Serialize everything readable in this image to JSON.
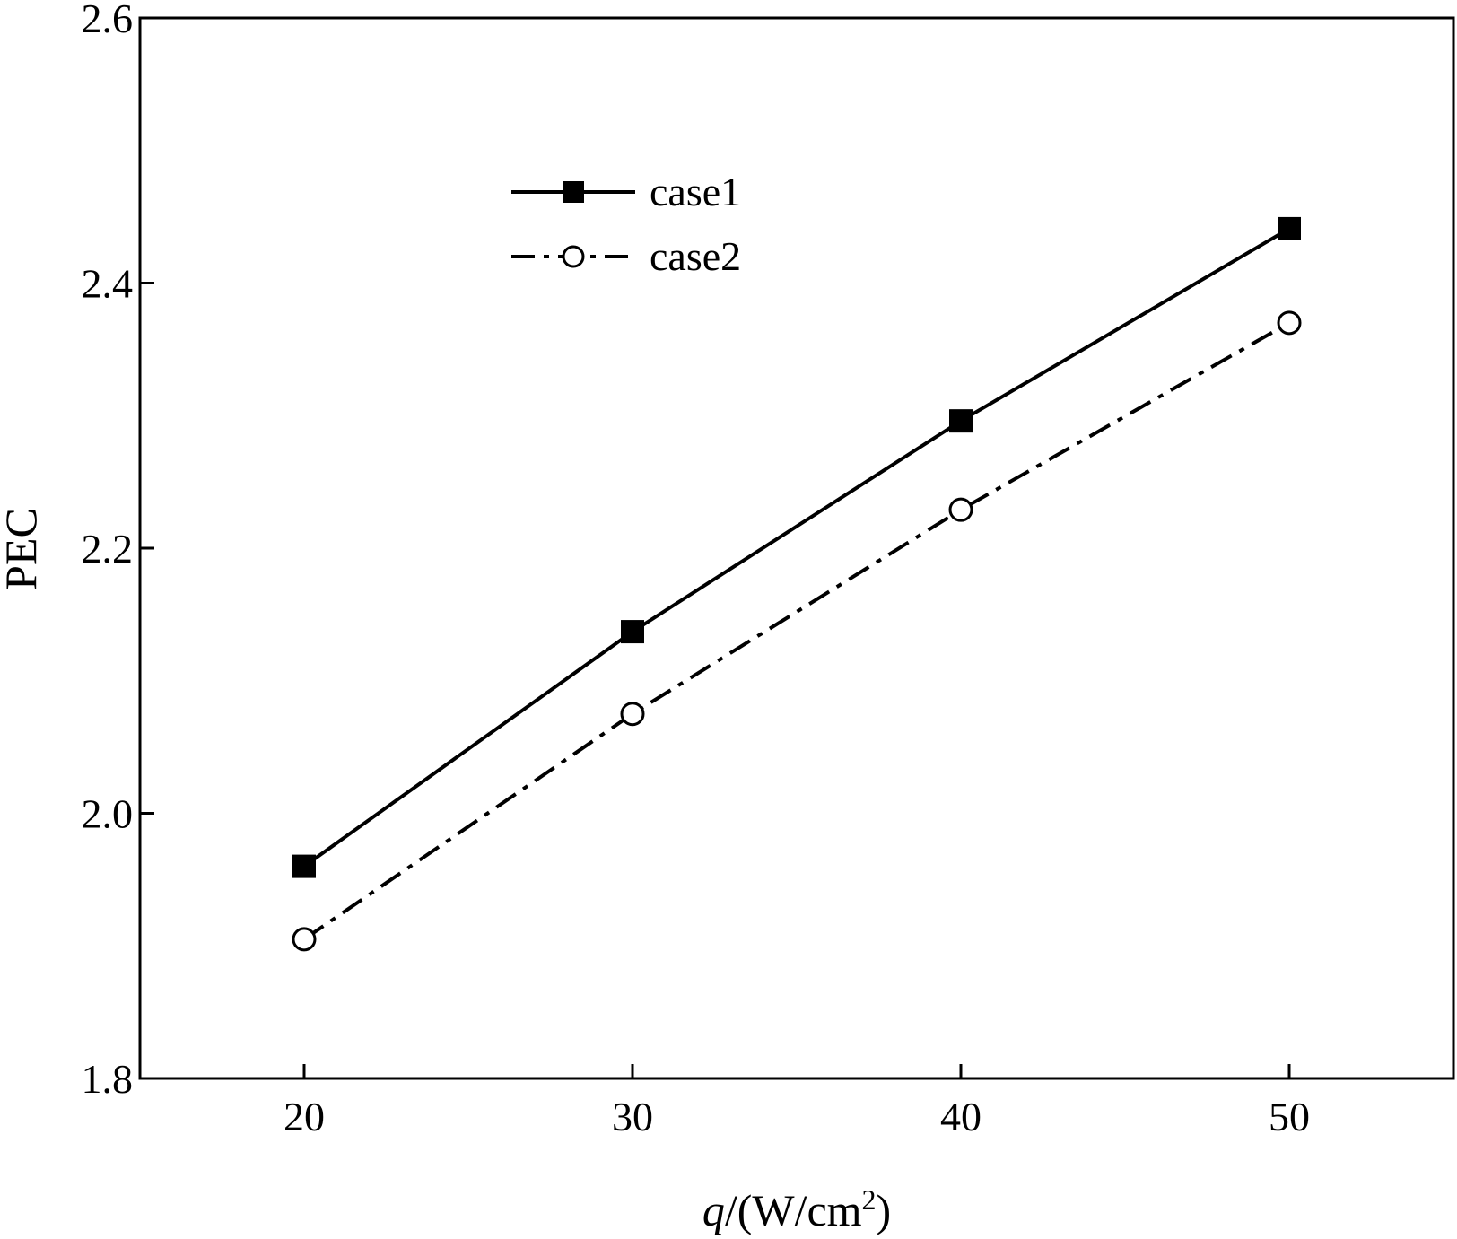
{
  "chart_data": {
    "type": "line",
    "title": "",
    "xlabel_italic": "q",
    "xlabel_rest": "/(W/cm",
    "xlabel_sup": "2",
    "xlabel_close": ")",
    "ylabel": "PEC",
    "x": [
      20,
      30,
      40,
      50
    ],
    "xlim": [
      15,
      55
    ],
    "ylim": [
      1.8,
      2.6
    ],
    "xticks": [
      "20",
      "30",
      "40",
      "50"
    ],
    "yticks": [
      "1.8",
      "2.0",
      "2.2",
      "2.4",
      "2.6"
    ],
    "grid": false,
    "legend_position": "top-left",
    "series": [
      {
        "name": "case1",
        "values": [
          1.96,
          2.137,
          2.296,
          2.441
        ],
        "marker": "filled-square",
        "line_style": "solid",
        "color": "#000000"
      },
      {
        "name": "case2",
        "values": [
          1.905,
          2.075,
          2.229,
          2.37
        ],
        "marker": "open-circle",
        "line_style": "dash-dot",
        "color": "#000000"
      }
    ]
  }
}
